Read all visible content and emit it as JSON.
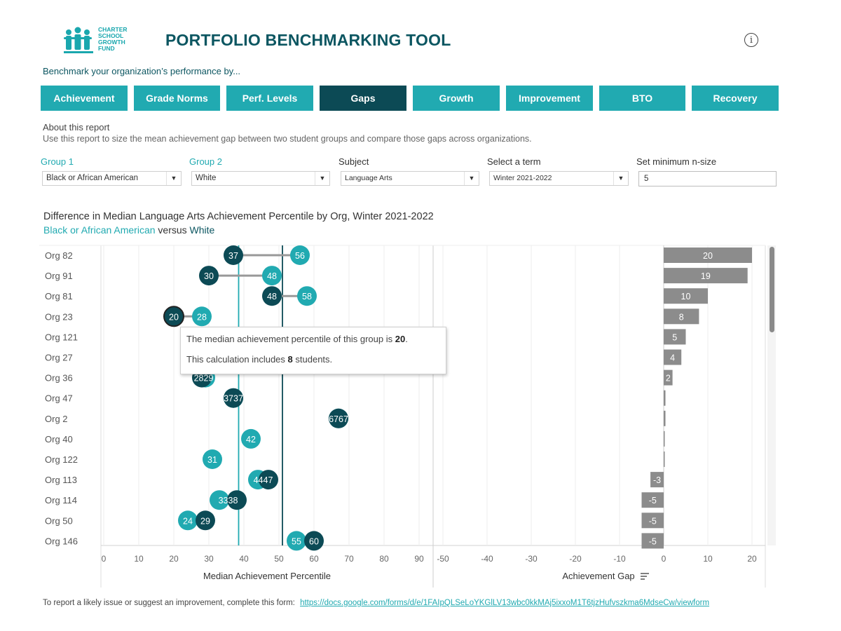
{
  "header": {
    "logo_text": [
      "CHARTER",
      "SCHOOL",
      "GROWTH",
      "FUND"
    ],
    "title": "PORTFOLIO BENCHMARKING TOOL",
    "info_icon": "info-icon",
    "subtitle": "Benchmark your organization’s performance by..."
  },
  "tabs": [
    "Achievement",
    "Grade Norms",
    "Perf. Levels",
    "Gaps",
    "Growth",
    "Improvement",
    "BTO",
    "Recovery"
  ],
  "active_tab": "Gaps",
  "about": {
    "heading": "About this report",
    "description": "Use this report to size the mean achievement gap between two student groups and compare those gaps across organizations."
  },
  "filters": {
    "group1_label": "Group 1",
    "group1_value": "Black or African American",
    "group2_label": "Group 2",
    "group2_value": "White",
    "subject_label": "Subject",
    "subject_value": "Language Arts",
    "term_label": "Select a term",
    "term_value": "Winter 2021-2022",
    "nsize_label": "Set minimum n-size",
    "nsize_value": "5",
    "dropdown_icon": "▼"
  },
  "chart_heading": {
    "title": "Difference in Median Language Arts Achievement Percentile by Org, Winter 2021-2022",
    "group1": "Black or African American",
    "versus": "versus",
    "group2": "White"
  },
  "tooltip": {
    "line1_prefix": "The median achievement percentile of this group is",
    "line1_value": "20",
    "line1_suffix": ".",
    "line2_prefix": "This calculation includes",
    "line2_value": "8",
    "line2_suffix": "students."
  },
  "footer": {
    "text": "To report a likely issue or suggest an improvement, complete this form:",
    "link": "https://docs.google.com/forms/d/e/1FAIpQLSeLoYKGlLV13wbc0kkMAj5ixxoM1T6tjzHufvszkma6MdseCw/viewform"
  },
  "chart_data": [
    {
      "type": "scatter",
      "title": "Median Achievement Percentile",
      "xlabel": "Median Achievement Percentile",
      "xlim": [
        0,
        90
      ],
      "xticks": [
        0,
        10,
        20,
        30,
        40,
        50,
        60,
        70,
        80,
        90
      ],
      "reference_lines": [
        {
          "name": "Black or African American",
          "value": 38.5
        },
        {
          "name": "White",
          "value": 51
        }
      ],
      "categories": [
        "Org 82",
        "Org 91",
        "Org 81",
        "Org 23",
        "Org 121",
        "Org 27",
        "Org 36",
        "Org 47",
        "Org 2",
        "Org 40",
        "Org 122",
        "Org 113",
        "Org 114",
        "Org 50",
        "Org 146"
      ],
      "series": [
        {
          "name": "Black or African American",
          "color": "#0c4a55",
          "values": [
            37,
            30,
            48,
            20,
            null,
            null,
            28,
            37,
            67,
            null,
            null,
            47,
            38,
            29,
            60
          ]
        },
        {
          "name": "White",
          "color": "#21aab1",
          "values": [
            56,
            48,
            58,
            28,
            null,
            null,
            29,
            37,
            67,
            42,
            31,
            44,
            33,
            24,
            55
          ]
        }
      ],
      "point_labels": [
        {
          "org": "Org 36",
          "label": "2829"
        },
        {
          "org": "Org 47",
          "label": "3737"
        },
        {
          "org": "Org 2",
          "label": "6767"
        },
        {
          "org": "Org 113",
          "label": "4447"
        },
        {
          "org": "Org 114",
          "label": "3338"
        }
      ]
    },
    {
      "type": "bar",
      "title": "Achievement Gap",
      "xlabel": "Achievement Gap",
      "xlim": [
        -50,
        22
      ],
      "xticks": [
        -50,
        -40,
        -30,
        -20,
        -10,
        0,
        10,
        20
      ],
      "categories": [
        "Org 82",
        "Org 91",
        "Org 81",
        "Org 23",
        "Org 121",
        "Org 27",
        "Org 36",
        "Org 47",
        "Org 2",
        "Org 40",
        "Org 122",
        "Org 113",
        "Org 114",
        "Org 50",
        "Org 146"
      ],
      "values": [
        20,
        19,
        10,
        8,
        5,
        4,
        2,
        0.4,
        0.4,
        0.2,
        0.1,
        -3,
        -5,
        -5,
        -5
      ],
      "labels": [
        "20",
        "19",
        "10",
        "8",
        "5",
        "4",
        "2",
        "",
        "",
        "",
        "",
        "-3",
        "-5",
        "-5",
        "-5"
      ],
      "color": "#8c8c8c"
    }
  ]
}
